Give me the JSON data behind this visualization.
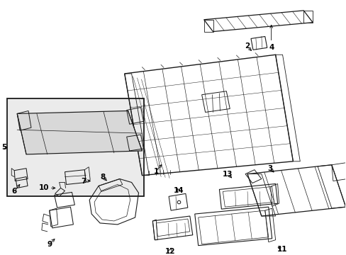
{
  "bg_color": "#ffffff",
  "line_color": "#1a1a1a",
  "box_fill": "#e8e8e8",
  "fig_width": 4.89,
  "fig_height": 3.6,
  "dpi": 100
}
